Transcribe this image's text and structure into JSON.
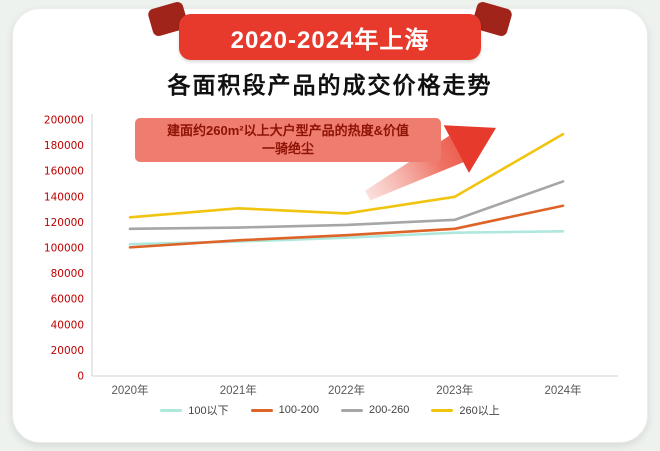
{
  "banner": {
    "title": "2020-2024年上海"
  },
  "subtitle": "各面积段产品的成交价格走势",
  "annotation": {
    "line1": "建面约260m²以上大户型产品的热度&价值",
    "line2": "一骑绝尘"
  },
  "chart_data": {
    "type": "line",
    "title": "2020-2024年上海各面积段产品的成交价格走势",
    "categories": [
      "2020年",
      "2021年",
      "2022年",
      "2023年",
      "2024年"
    ],
    "series": [
      {
        "name": "100以下",
        "color": "#aee8dc",
        "values": [
          103000,
          105000,
          108000,
          112000,
          113000
        ]
      },
      {
        "name": "100-200",
        "color": "#dd6327",
        "values": [
          100500,
          106000,
          110000,
          115000,
          133000
        ]
      },
      {
        "name": "200-260",
        "color": "#a6a6a6",
        "values": [
          115000,
          116000,
          118000,
          122000,
          152000
        ]
      },
      {
        "name": "260以上",
        "color": "#f1c40f",
        "values": [
          124000,
          131000,
          127000,
          140000,
          189000
        ]
      }
    ],
    "ylim": [
      0,
      200000
    ],
    "ytick_step": 20000,
    "grid": false,
    "legend_position": "bottom"
  },
  "colors": {
    "page_bg": "#eef2ee",
    "card_bg": "#ffffff",
    "banner_bg": "#e73a2c",
    "ribbon_fold": "#a0241a",
    "annotation_bg": "#ef7d6f",
    "annotation_text": "#8d1306",
    "arrow": "#e63a2c",
    "axis_tick_red": "#c00000",
    "axis_label_gray": "#595959"
  }
}
